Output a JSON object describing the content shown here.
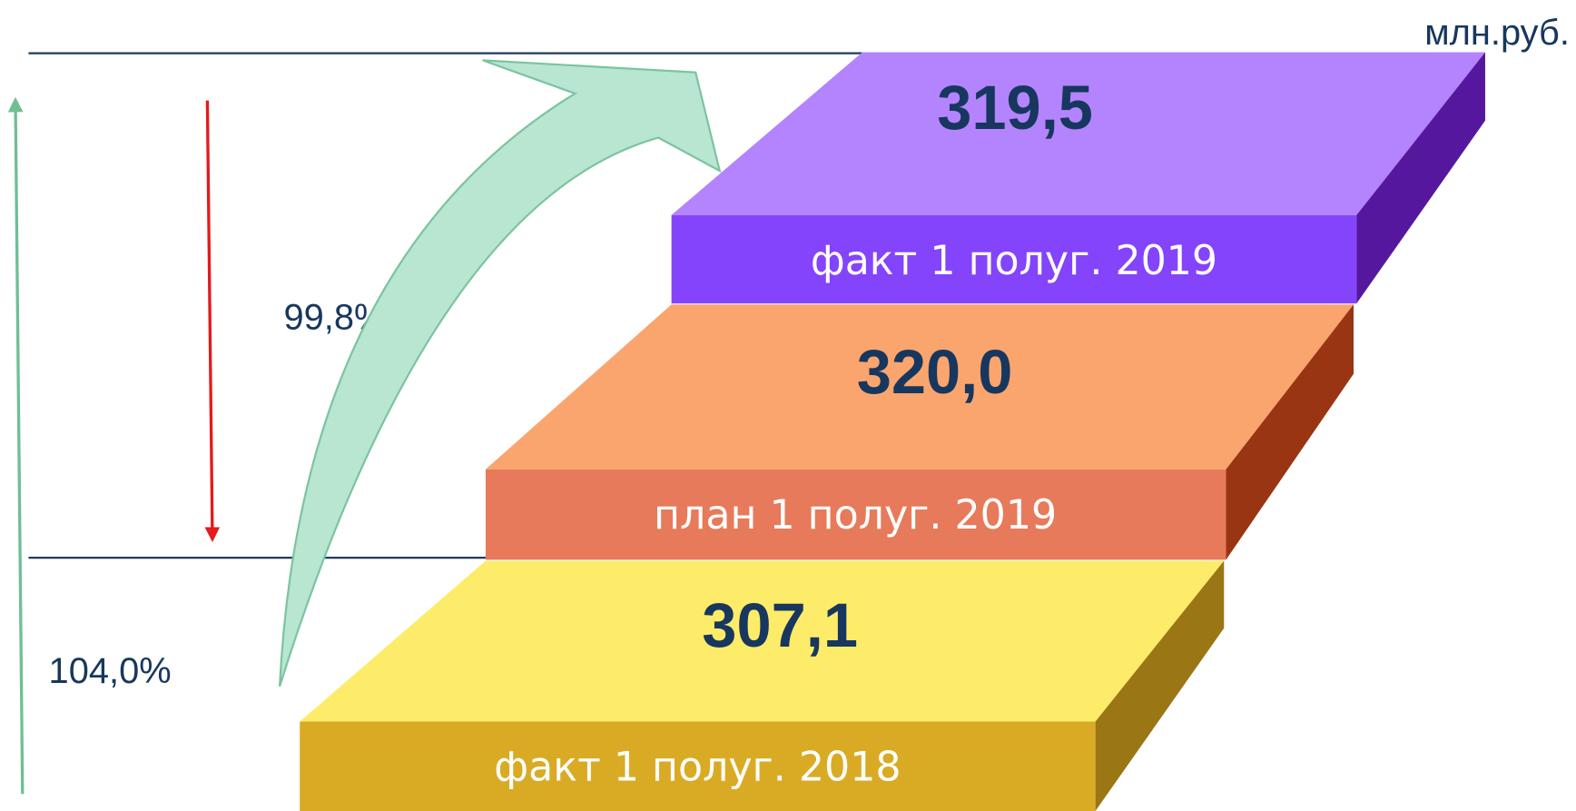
{
  "unit": "млн.руб.",
  "steps": [
    {
      "value": "307,1",
      "label": "факт 1 полуг. 2018"
    },
    {
      "value": "320,0",
      "label": "план 1 полуг. 2019"
    },
    {
      "value": "319,5",
      "label": "факт 1 полуг. 2019"
    }
  ],
  "annotations": {
    "plan_execution": "99,8%",
    "growth": "104,0%"
  }
}
